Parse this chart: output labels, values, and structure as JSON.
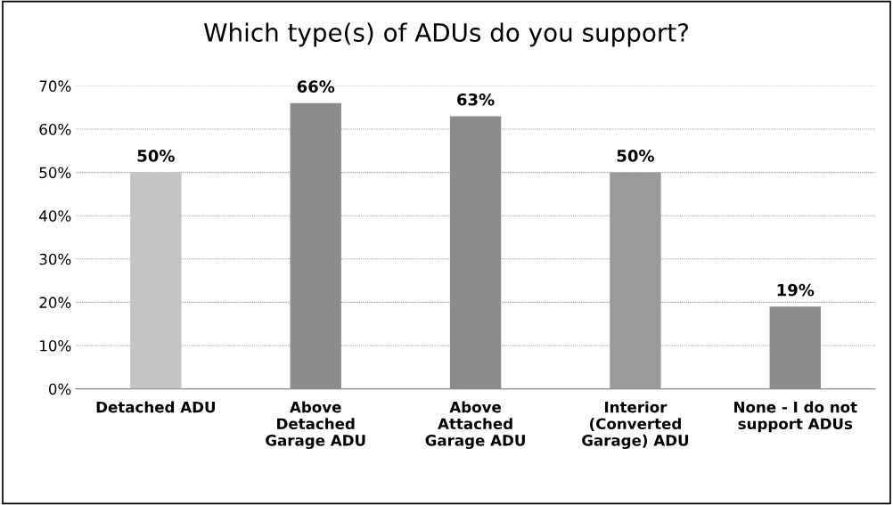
{
  "chart_data": {
    "type": "bar",
    "title": "Which type(s) of ADUs do you support?",
    "categories": [
      "Detached ADU",
      "Above\nDetached\nGarage ADU",
      "Above\nAttached\nGarage ADU",
      "Interior\n(Converted\nGarage) ADU",
      "None - I do not\nsupport ADUs"
    ],
    "values": [
      50,
      66,
      63,
      50,
      19
    ],
    "value_labels": [
      "50%",
      "66%",
      "63%",
      "50%",
      "19%"
    ],
    "colors": [
      "#c4c4c4",
      "#8c8c8c",
      "#8c8c8c",
      "#9a9a9a",
      "#8c8c8c"
    ],
    "ylim": [
      0,
      70
    ],
    "yticks": [
      {
        "value": 0,
        "label": "0%"
      },
      {
        "value": 10,
        "label": "10%"
      },
      {
        "value": 20,
        "label": "20%"
      },
      {
        "value": 30,
        "label": "30%"
      },
      {
        "value": 40,
        "label": "40%"
      },
      {
        "value": 50,
        "label": "50%"
      },
      {
        "value": 60,
        "label": "60%"
      },
      {
        "value": 70,
        "label": "70%"
      }
    ],
    "grid": "y",
    "legend": false
  }
}
